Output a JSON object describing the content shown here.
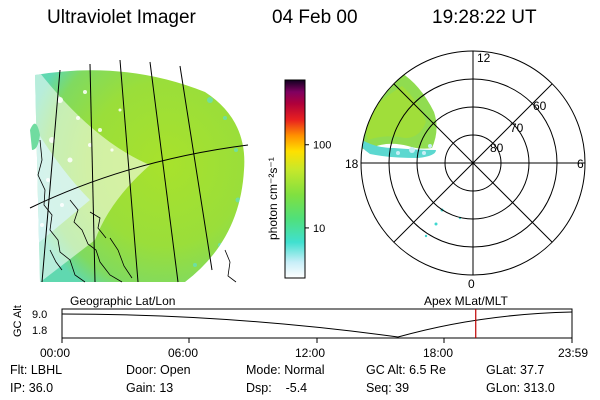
{
  "header": {
    "instrument": "Ultraviolet Imager",
    "date": "04 Feb 00",
    "time": "19:28:22 UT"
  },
  "colorbar": {
    "label": "photon cm⁻²s⁻¹",
    "ticks": [
      {
        "label": "100",
        "value": 100
      },
      {
        "label": "10",
        "value": 10
      }
    ],
    "range": [
      2.5,
      600
    ],
    "scale": "log"
  },
  "polar": {
    "mlt_labels": {
      "top": "12",
      "left": "18",
      "right": "6",
      "bottom": "0"
    },
    "lat_labels": [
      {
        "label": "60",
        "value": 60
      },
      {
        "label": "70",
        "value": 70
      },
      {
        "label": "80",
        "value": 80
      }
    ]
  },
  "timeline": {
    "left_label": "Geographic Lat/Lon",
    "right_label": "Apex MLat/MLT",
    "axis_title": "GC Alt",
    "y_ticks": [
      "9.0",
      "1.8"
    ],
    "x_ticks": [
      "00:00",
      "06:00",
      "12:00",
      "18:00",
      "23:59"
    ],
    "current_time_hours": 19.47,
    "marker_color": "#c00000"
  },
  "info": {
    "row1": {
      "flt_label": "Flt: LBHL",
      "door_label": "Door: Open",
      "mode_label": "Mode: Normal",
      "gcalt_label": "GC Alt: 6.5 Re",
      "glat_label": "GLat:  37.7"
    },
    "row2": {
      "ip_label": "IP: 36.0",
      "gain_label": "Gain: 13",
      "dsp_label": "Dsp:    -5.4",
      "seq_label": "Seq: 39",
      "glon_label": "GLon: 313.0"
    }
  }
}
